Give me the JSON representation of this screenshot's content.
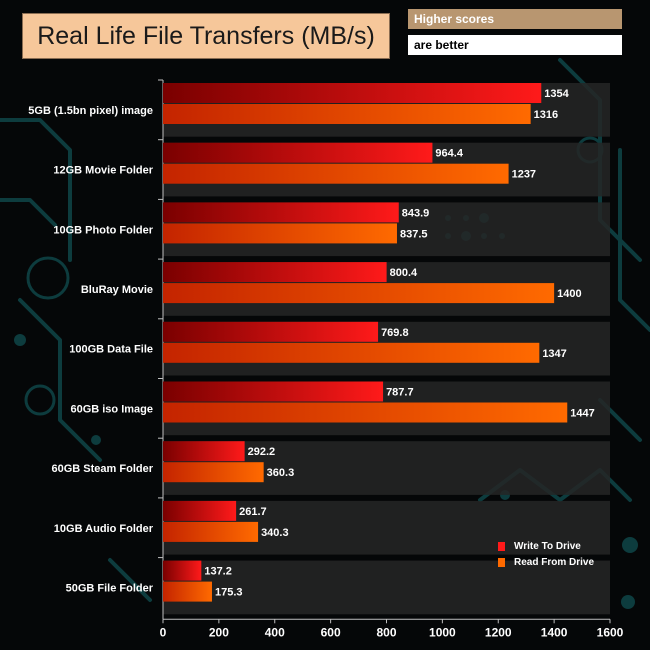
{
  "title": "Real Life File Transfers (MB/s)",
  "note": {
    "line1": "Higher scores",
    "line2": "are better"
  },
  "colors": {
    "write_start": "#7a0000",
    "write_end": "#ff1a1a",
    "read_start": "#c42400",
    "read_end": "#ff6a00",
    "background": "#050708",
    "circuit": "#0d3c3e",
    "band": "#262626",
    "text": "#ffffff",
    "title_bg": "#f6c79a",
    "note_bg": "#b89670"
  },
  "chart_data": {
    "type": "bar",
    "orientation": "horizontal",
    "title": "Real Life File Transfers (MB/s)",
    "xlabel": "",
    "ylabel": "",
    "xlim": [
      0,
      1600
    ],
    "xticks": [
      0,
      200,
      400,
      600,
      800,
      1000,
      1200,
      1400,
      1600
    ],
    "categories": [
      "5GB (1.5bn pixel) image",
      "12GB Movie Folder",
      "10GB Photo Folder",
      "BluRay Movie",
      "100GB Data File",
      "60GB iso Image",
      "60GB Steam Folder",
      "10GB Audio Folder",
      "50GB File Folder"
    ],
    "series": [
      {
        "name": "Write To  Drive",
        "labels": [
          "1354",
          "964.4",
          "843.9",
          "800.4",
          "769.8",
          "787.7",
          "292.2",
          "261.7",
          "137.2"
        ],
        "values": [
          1354,
          964.4,
          843.9,
          800.4,
          769.8,
          787.7,
          292.2,
          261.7,
          137.2
        ]
      },
      {
        "name": "Read From  Drive",
        "labels": [
          "1316",
          "1237",
          "837.5",
          "1400",
          "1347",
          "1447",
          "360.3",
          "340.3",
          "175.3"
        ],
        "values": [
          1316,
          1237,
          837.5,
          1400,
          1347,
          1447,
          360.3,
          340.3,
          175.3
        ]
      }
    ],
    "legend_position": "bottom-right",
    "grid": false
  }
}
